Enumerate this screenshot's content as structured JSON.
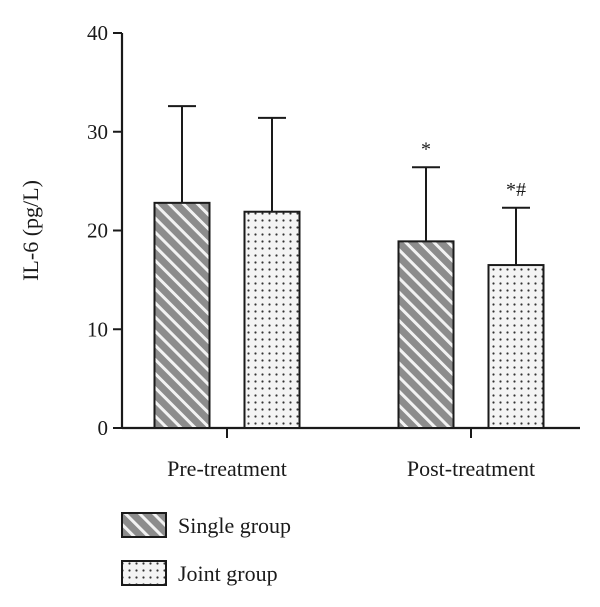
{
  "chart_data": {
    "type": "bar",
    "title": "",
    "xlabel": "",
    "ylabel": "IL-6 (pg/L)",
    "ylim": [
      0,
      40
    ],
    "yticks": [
      0,
      10,
      20,
      30,
      40
    ],
    "categories": [
      "Pre-treatment",
      "Post-treatment"
    ],
    "series": [
      {
        "name": "Single group",
        "pattern": "hatch",
        "values": [
          22.8,
          18.9
        ],
        "errors": [
          9.8,
          7.5
        ],
        "annotations": [
          "",
          "*"
        ]
      },
      {
        "name": "Joint group",
        "pattern": "dots",
        "values": [
          21.9,
          16.5
        ],
        "errors": [
          9.5,
          5.8
        ],
        "annotations": [
          "",
          "*#"
        ]
      }
    ],
    "legend_position": "bottom-left",
    "grid": false,
    "colors": {
      "bar_fill": "#8c8c8c",
      "stroke": "#1a1a1a",
      "dot_fill": "#f4f4f4"
    }
  }
}
